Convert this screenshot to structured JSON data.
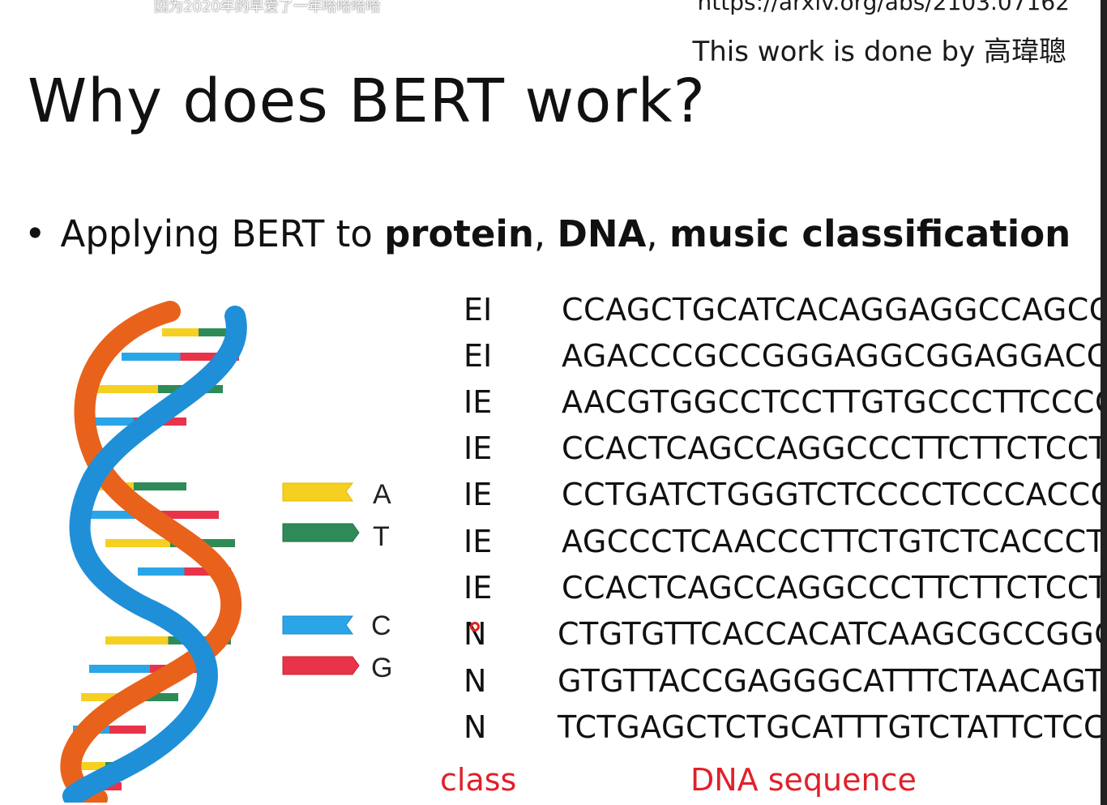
{
  "overlay": {
    "danmaku": "因为2020年的早爱了一年哈哈哈哈"
  },
  "header": {
    "url": "https://arxiv.org/abs/2103.07162",
    "credit": "This work is done by 高瑋聰"
  },
  "slide": {
    "title": "Why does BERT work?",
    "bullet": {
      "prefix": "Applying BERT to ",
      "bold1": "protein",
      "sep1": ", ",
      "bold2": "DNA",
      "sep2": ", ",
      "bold3": "music classification"
    }
  },
  "legend": [
    {
      "letter": "A",
      "color": "#f5d020"
    },
    {
      "letter": "T",
      "color": "#2e8b57"
    },
    {
      "letter": "C",
      "color": "#2aa6e8"
    },
    {
      "letter": "G",
      "color": "#e8334a"
    }
  ],
  "table": {
    "rows": [
      {
        "cls": "EI",
        "seq": "CCAGCTGCATCACAGGAGGCCAGCG"
      },
      {
        "cls": "EI",
        "seq": "AGACCCGCCGGGAGGCGGAGGACC"
      },
      {
        "cls": "IE",
        "seq": "AACGTGGCCTCCTTGTGCCCTTCCCC"
      },
      {
        "cls": "IE",
        "seq": "CCACTCAGCCAGGCCCTTCTTCTCCT"
      },
      {
        "cls": "IE",
        "seq": "CCTGATCTGGGTCTCCCCTCCCACCC"
      },
      {
        "cls": "IE",
        "seq": "AGCCCTCAACCCTTCTGTCTCACCCTC"
      },
      {
        "cls": "IE",
        "seq": "CCACTCAGCCAGGCCCTTCTTCTCCT"
      },
      {
        "cls": "N",
        "seq": "CTGTGTTCACCACATCAAGCGCCGGC"
      },
      {
        "cls": "N",
        "seq": "GTGTTACCGAGGGCATTTCTAACAGT"
      },
      {
        "cls": "N",
        "seq": "TCTGAGCTCTGCATTTGTCTATTCTCC"
      }
    ],
    "class_label": "class",
    "sequence_label": "DNA sequence"
  }
}
